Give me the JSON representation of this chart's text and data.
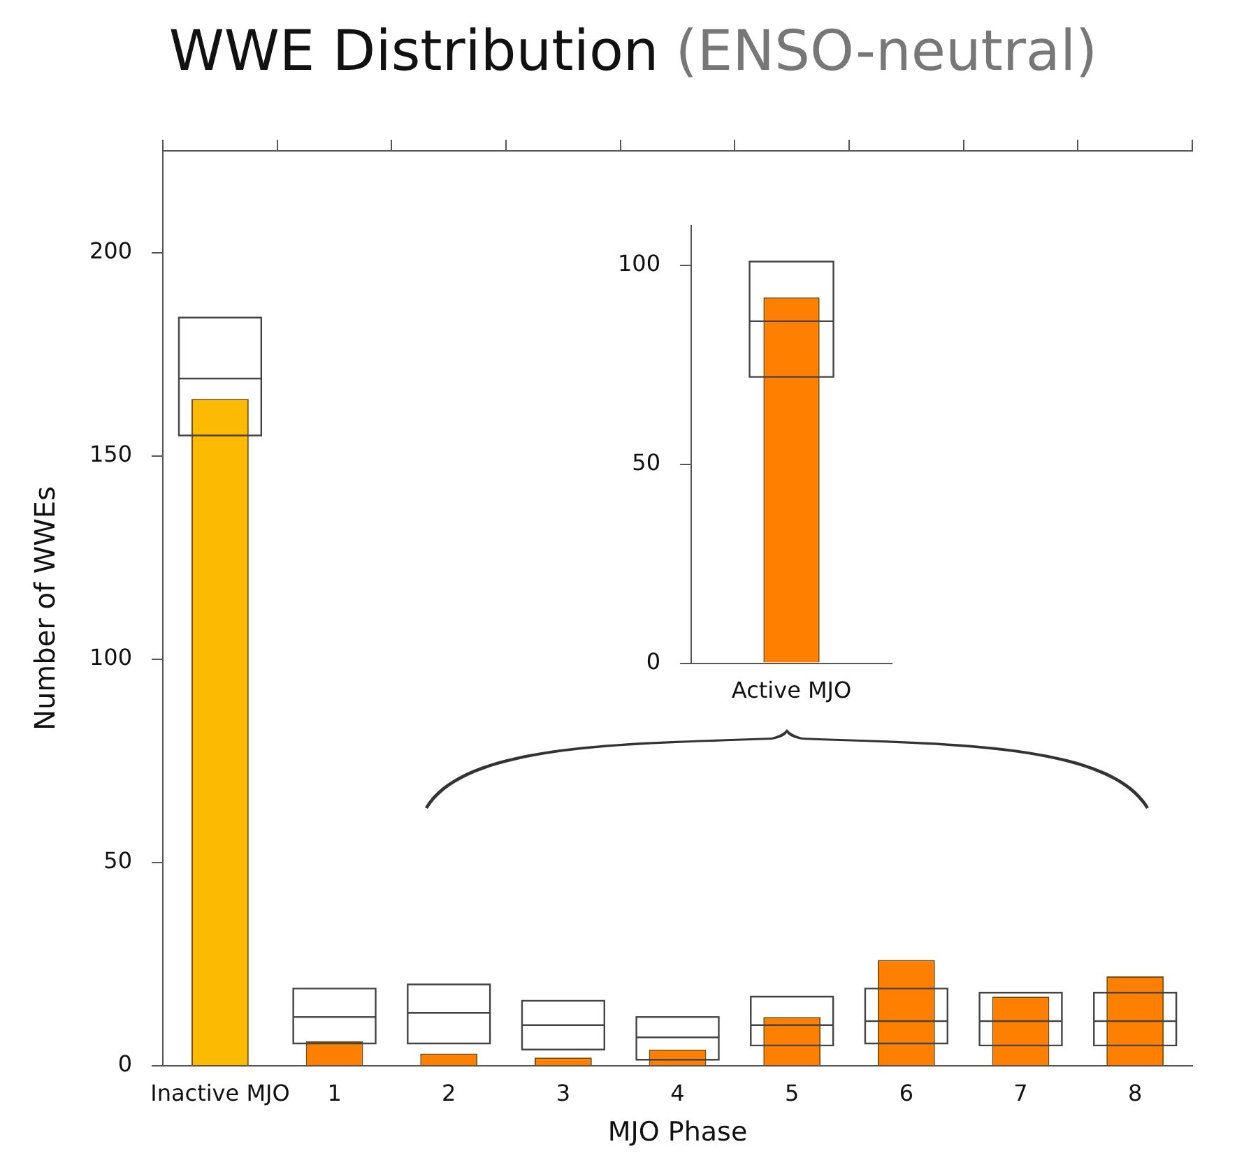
{
  "chart_data": [
    {
      "type": "bar",
      "title": "WWE Distribution",
      "subtitle": "(ENSO-neutral)",
      "xlabel": "MJO Phase",
      "ylabel": "Number of WWEs",
      "categories": [
        "Inactive MJO",
        "1",
        "2",
        "3",
        "4",
        "5",
        "6",
        "7",
        "8"
      ],
      "ylim": [
        0,
        225
      ],
      "yticks": [
        0,
        50,
        100,
        150,
        200
      ],
      "grid": false,
      "legend": false,
      "series": [
        {
          "type": "bar",
          "colors": [
            "#fdbb00",
            "#ff8000",
            "#ff8000",
            "#ff8000",
            "#ff8000",
            "#ff8000",
            "#ff8000",
            "#ff8000",
            "#ff8000"
          ],
          "values": [
            164,
            6,
            3,
            2,
            4,
            12,
            26,
            17,
            22
          ]
        },
        {
          "type": "box",
          "color": "#444444",
          "boxes": [
            {
              "low": 155,
              "q1": 155,
              "median": 169,
              "q3": 184,
              "high": 184
            },
            {
              "low": 5.5,
              "q1": 5.5,
              "median": 12,
              "q3": 19,
              "high": 19
            },
            {
              "low": 5.5,
              "q1": 5.5,
              "median": 13,
              "q3": 20,
              "high": 20
            },
            {
              "low": 4,
              "q1": 4,
              "median": 10,
              "q3": 16,
              "high": 16
            },
            {
              "low": 1.5,
              "q1": 1.5,
              "median": 7,
              "q3": 12,
              "high": 12
            },
            {
              "low": 5,
              "q1": 5,
              "median": 10,
              "q3": 17,
              "high": 17
            },
            {
              "low": 5.5,
              "q1": 5.5,
              "median": 11,
              "q3": 19,
              "high": 19
            },
            {
              "low": 5,
              "q1": 5,
              "median": 11,
              "q3": 18,
              "high": 18
            },
            {
              "low": 5,
              "q1": 5,
              "median": 11,
              "q3": 18,
              "high": 18
            }
          ]
        }
      ]
    },
    {
      "type": "bar",
      "categories": [
        "Active MJO"
      ],
      "ylim": [
        0,
        110
      ],
      "yticks": [
        0,
        50,
        100
      ],
      "grid": false,
      "legend": false,
      "series": [
        {
          "type": "bar",
          "colors": [
            "#ff8000"
          ],
          "values": [
            92
          ]
        },
        {
          "type": "box",
          "color": "#444444",
          "boxes": [
            {
              "low": 72,
              "q1": 72,
              "median": 86,
              "q3": 101,
              "high": 101
            }
          ]
        }
      ]
    }
  ]
}
